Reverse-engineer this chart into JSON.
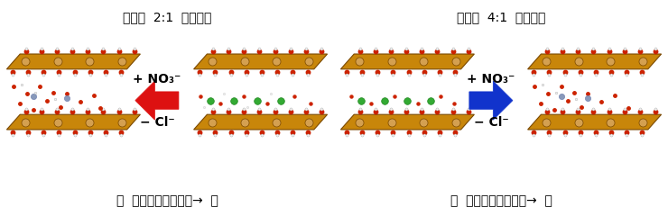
{
  "left_panel": {
    "title": "構成比  2:1  低選択性",
    "border_color": "#111111",
    "border_width": 1.5,
    "arrow_color": "#dd1111",
    "arrow_direction": "left",
    "label_top": "+ NO₃⁻",
    "label_bottom": "− Cl⁻",
    "footer": "高  ーイオンの運動性→  低"
  },
  "right_panel": {
    "title": "構成比  4:1  高選択性",
    "border_color": "#dd0000",
    "border_width": 3,
    "arrow_color": "#1133cc",
    "arrow_direction": "right",
    "label_top": "+ NO₃⁻",
    "label_bottom": "− Cl⁻",
    "footer": "高  ーイオンの運動性→  低"
  },
  "bg_color": "#ffffff",
  "layer_color": "#c8860a",
  "layer_edge_color": "#7a4800",
  "atom_red": "#cc2200",
  "atom_white": "#f0f0f0",
  "atom_green": "#33aa33",
  "atom_blue_gray": "#8899bb",
  "title_fontsize": 10,
  "label_fontsize": 9,
  "footer_fontsize": 10
}
